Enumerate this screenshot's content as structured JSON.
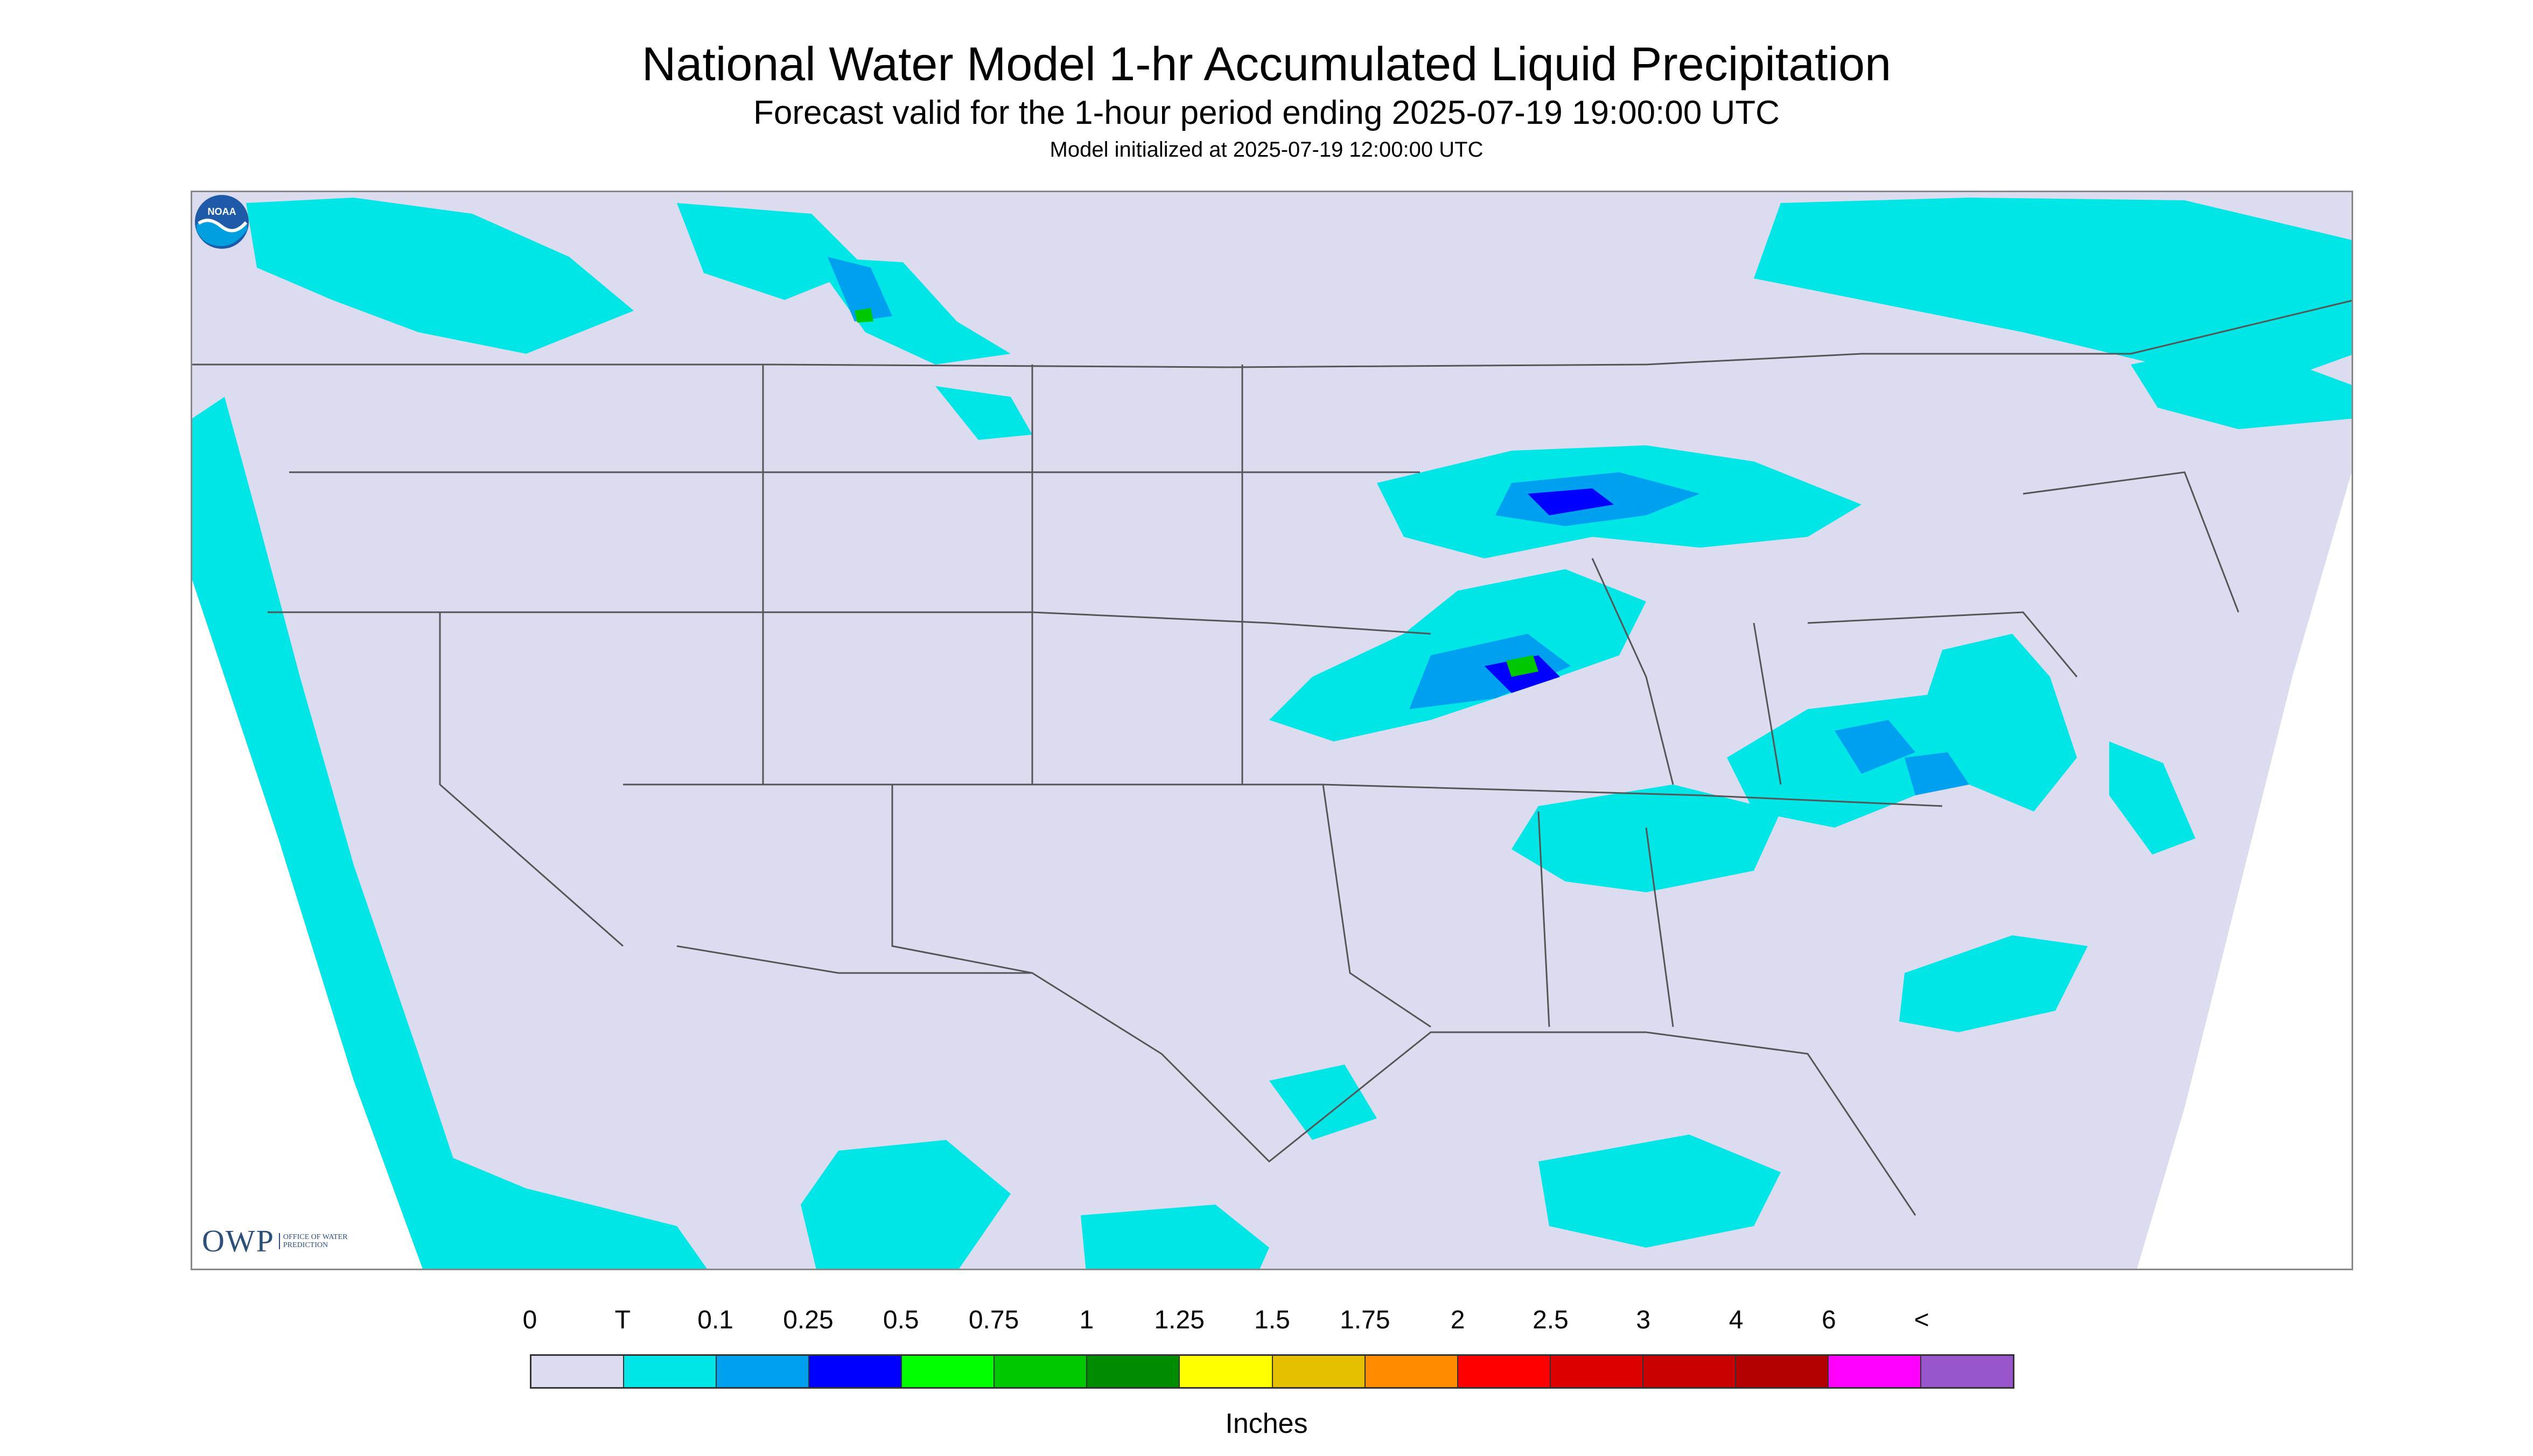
{
  "header": {
    "title": "National Water Model 1-hr Accumulated Liquid Precipitation",
    "subtitle": "Forecast valid for the 1-hour period ending 2025-07-19 19:00:00 UTC",
    "init": "Model initialized at 2025-07-19 12:00:00 UTC"
  },
  "logos": {
    "owp_text": "OWP",
    "owp_sub": "OFFICE OF WATER PREDICTION",
    "noaa_text": "NOAA"
  },
  "legend": {
    "labels": [
      "0",
      "T",
      "0.1",
      "0.25",
      "0.5",
      "0.75",
      "1",
      "1.25",
      "1.5",
      "1.75",
      "2",
      "2.5",
      "3",
      "4",
      "6",
      "<"
    ],
    "colors": [
      "#dcdcf0",
      "#00e6e6",
      "#00a0f0",
      "#0000ff",
      "#00ff00",
      "#00c800",
      "#008c00",
      "#ffff00",
      "#e6be00",
      "#ff8c00",
      "#ff0000",
      "#dc0000",
      "#c80000",
      "#b40000",
      "#ff00ff",
      "#9955cc"
    ],
    "units": "Inches"
  },
  "colors": {
    "domain": "#dcdcf0",
    "trace": "#00e6e6",
    "light": "#00a0f0",
    "blue": "#0000ff",
    "green": "#00c800",
    "boundary": "#555555"
  }
}
